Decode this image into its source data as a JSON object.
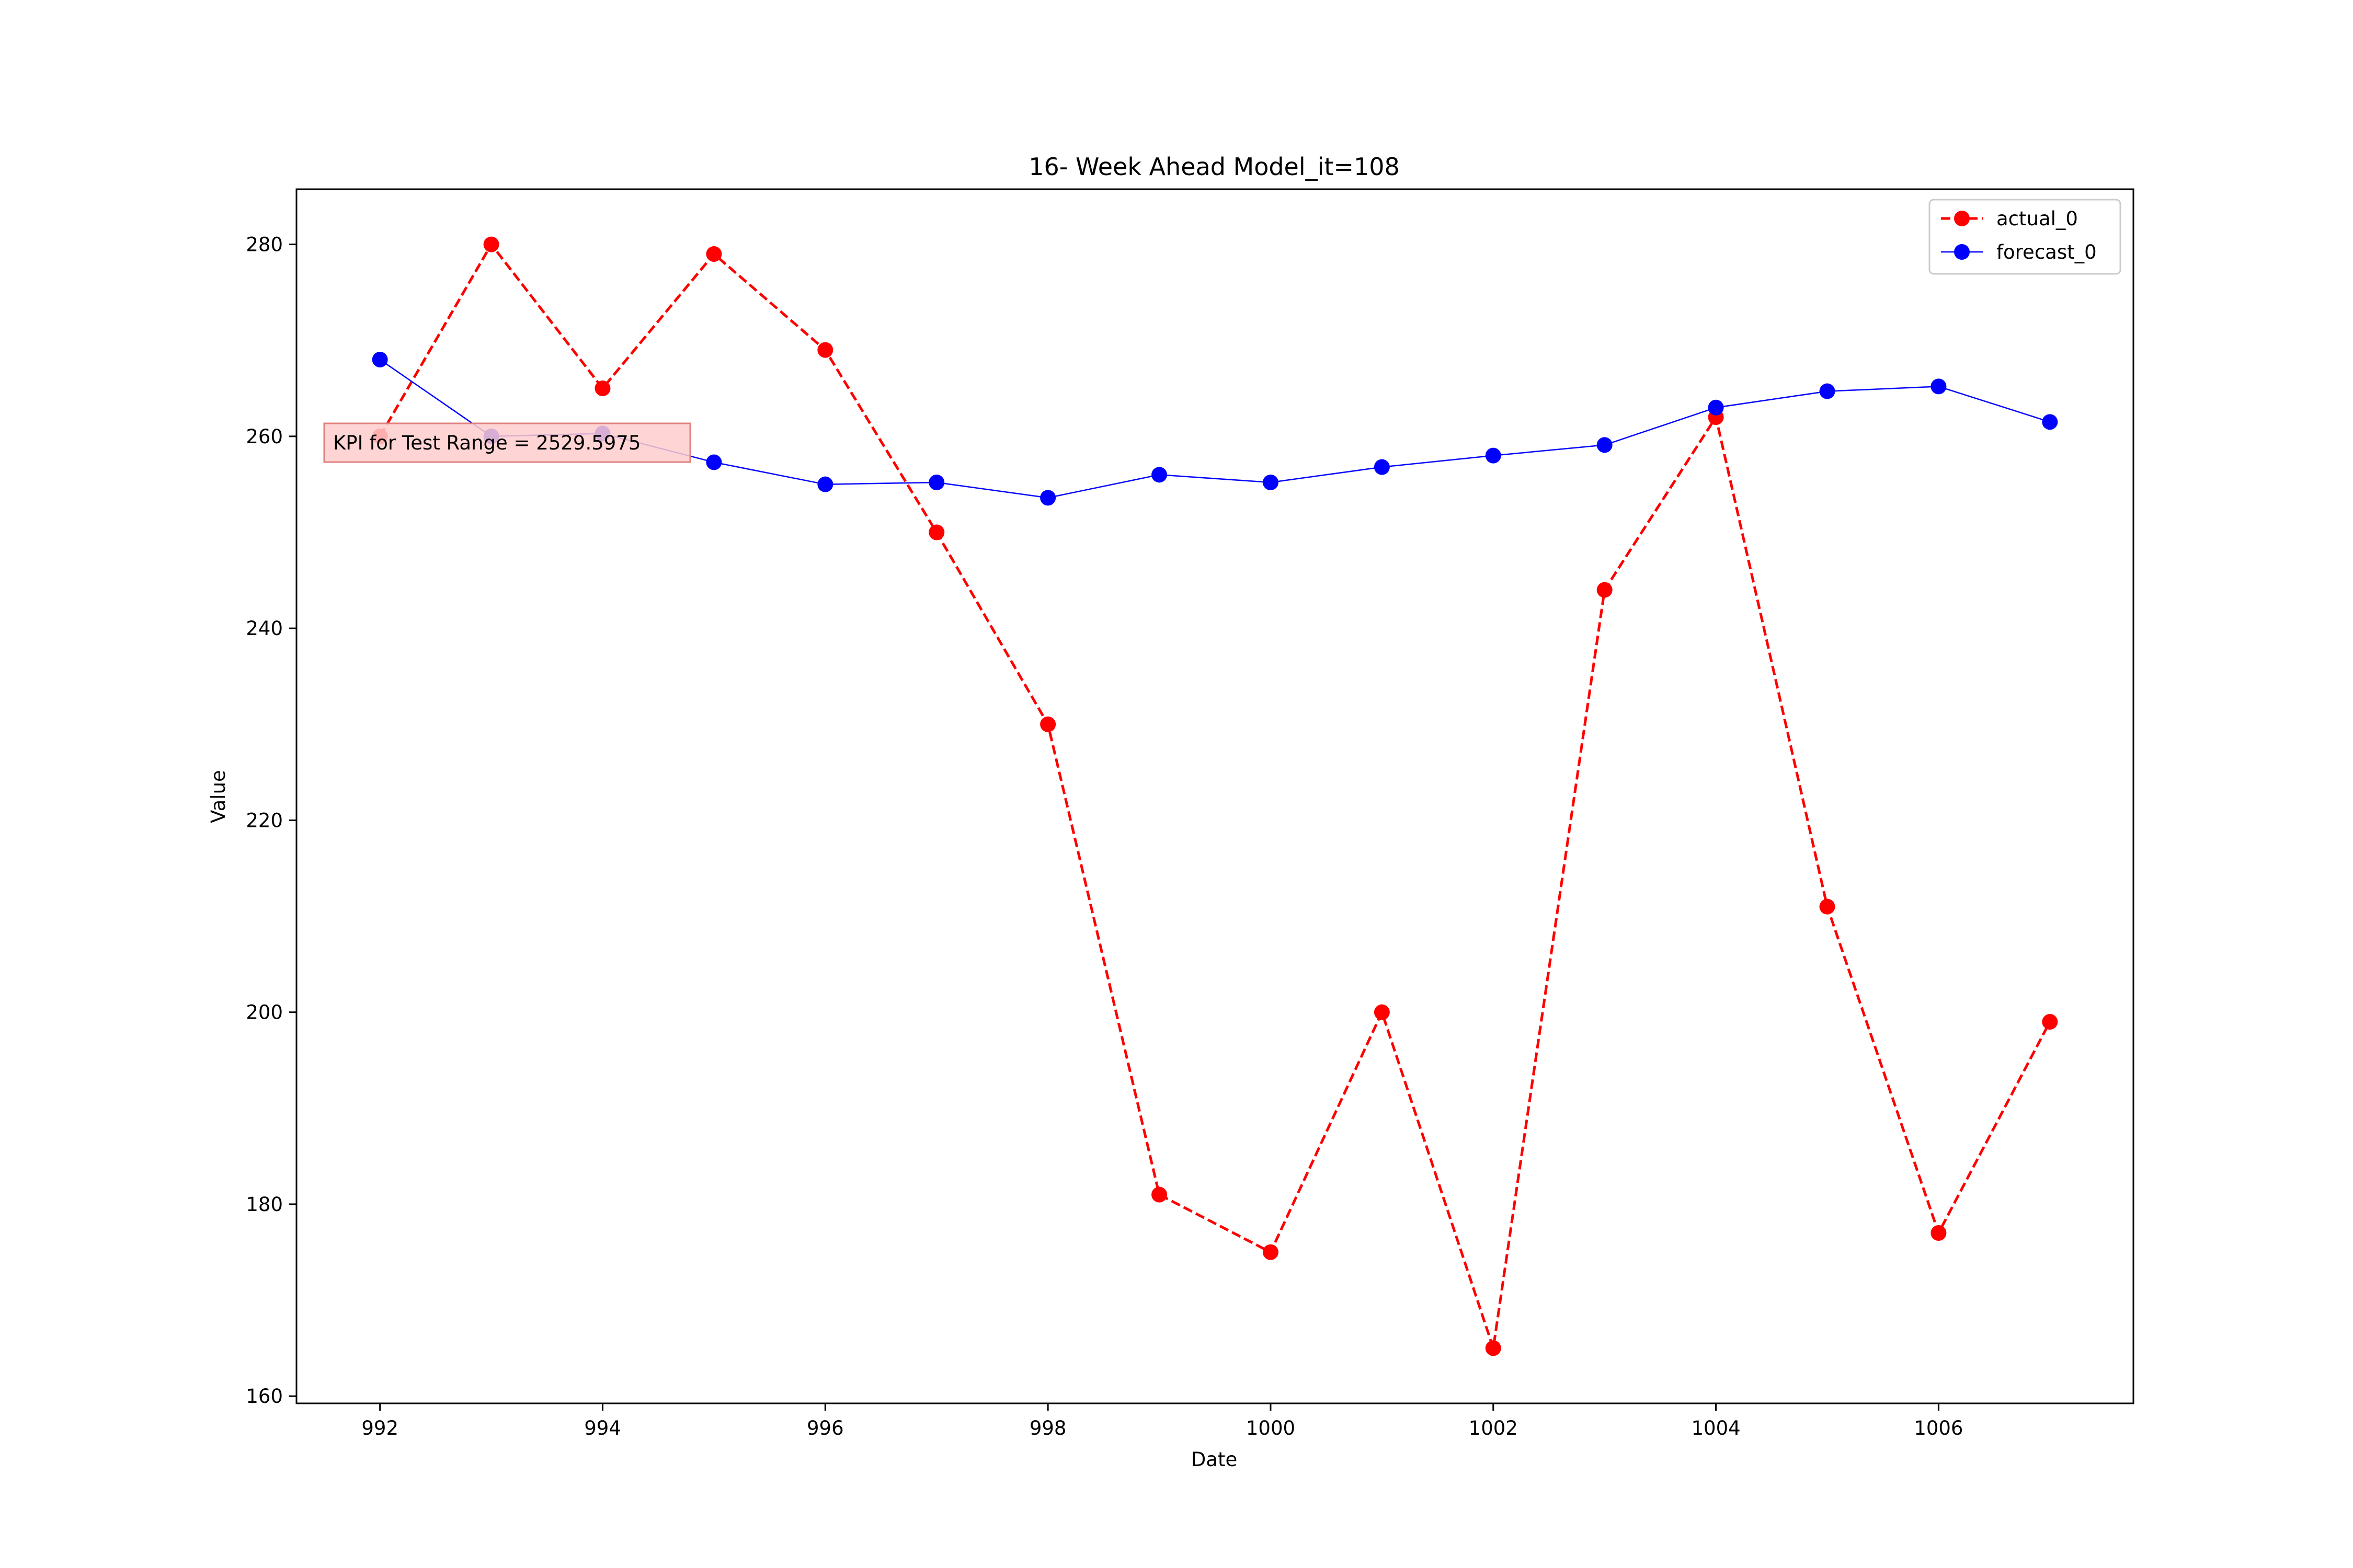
{
  "chart_data": {
    "type": "line",
    "title": "16- Week Ahead Model_it=108",
    "xlabel": "Date",
    "ylabel": "Value",
    "xlim": [
      991.25,
      1007.75
    ],
    "ylim": [
      159.25,
      285.75
    ],
    "x_ticks": [
      992,
      994,
      996,
      998,
      1000,
      1002,
      1004,
      1006
    ],
    "y_ticks": [
      160,
      180,
      200,
      220,
      240,
      260,
      280
    ],
    "grid": false,
    "legend_position": "top-right",
    "x": [
      992,
      993,
      994,
      995,
      996,
      997,
      998,
      999,
      1000,
      1001,
      1002,
      1003,
      1004,
      1005,
      1006,
      1007
    ],
    "series": [
      {
        "name": "actual_0",
        "color": "#ff0000",
        "line_style": "dashed",
        "marker": "circle",
        "values": [
          260,
          280,
          265,
          279,
          269,
          250,
          230,
          181,
          175,
          200,
          165,
          244,
          262,
          211,
          177,
          199
        ]
      },
      {
        "name": "forecast_0",
        "color": "#0000ff",
        "line_style": "solid",
        "marker": "circle",
        "values": [
          268,
          260,
          260.3,
          257.3,
          255,
          255.2,
          253.6,
          256,
          255.2,
          256.8,
          258,
          259.1,
          263,
          264.7,
          265.2,
          261.5
        ]
      }
    ],
    "annotation": {
      "text": "KPI for Test Range = 2529.5975",
      "background": "#ffcccc",
      "border": "#e08080"
    }
  }
}
